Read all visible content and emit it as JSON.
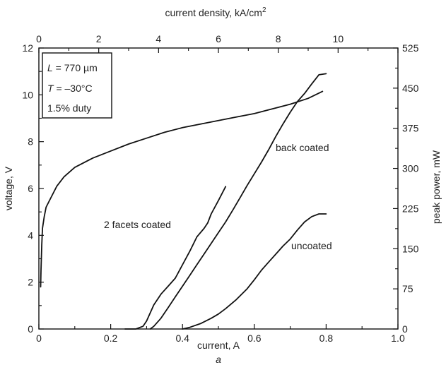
{
  "chart_data": {
    "type": "line",
    "panel_label": "a",
    "axes": {
      "x_bottom": {
        "label": "current, A",
        "range": [
          0,
          1.0
        ],
        "ticks": [
          "0",
          "0.2",
          "0.4",
          "0.6",
          "0.8",
          "1.0"
        ],
        "tick_values": [
          0,
          0.2,
          0.4,
          0.6,
          0.8,
          1.0
        ]
      },
      "x_top": {
        "label": "current density, kA/cm",
        "label_sup": "2",
        "range": [
          0,
          12
        ],
        "ticks": [
          "0",
          "2",
          "4",
          "6",
          "8",
          "10"
        ],
        "tick_values": [
          0,
          2,
          4,
          6,
          8,
          10
        ]
      },
      "y_left": {
        "label": "voltage, V",
        "range": [
          0,
          12
        ],
        "ticks": [
          "0",
          "2",
          "4",
          "6",
          "8",
          "10",
          "12"
        ],
        "tick_values": [
          0,
          2,
          4,
          6,
          8,
          10,
          12
        ]
      },
      "y_right": {
        "label": "peak power, mW",
        "range": [
          0,
          525
        ],
        "ticks": [
          "0",
          "75",
          "150",
          "225",
          "300",
          "375",
          "450",
          "525"
        ],
        "tick_values": [
          0,
          75,
          150,
          225,
          300,
          375,
          450,
          525
        ]
      }
    },
    "legend_box": {
      "line1_var": "L",
      "line1_rest": " = 770 µm",
      "line2_var": "T",
      "line2_rest": " = –30°C",
      "line3": "1.5% duty"
    },
    "series": [
      {
        "kind": "voltage",
        "axis": "left",
        "x": [
          0.005,
          0.006,
          0.008,
          0.01,
          0.015,
          0.02,
          0.03,
          0.04,
          0.05,
          0.07,
          0.1,
          0.15,
          0.2,
          0.25,
          0.3,
          0.35,
          0.4,
          0.45,
          0.5,
          0.55,
          0.6,
          0.65,
          0.7,
          0.75,
          0.79
        ],
        "y": [
          1.8,
          2.5,
          3.6,
          4.3,
          4.8,
          5.2,
          5.5,
          5.8,
          6.1,
          6.5,
          6.9,
          7.3,
          7.6,
          7.9,
          8.15,
          8.4,
          8.6,
          8.75,
          8.9,
          9.05,
          9.2,
          9.4,
          9.6,
          9.85,
          10.15
        ]
      },
      {
        "name": "back coated",
        "axis": "right",
        "x": [
          0.31,
          0.32,
          0.34,
          0.36,
          0.38,
          0.4,
          0.42,
          0.44,
          0.46,
          0.48,
          0.5,
          0.52,
          0.54,
          0.56,
          0.58,
          0.6,
          0.62,
          0.64,
          0.66,
          0.68,
          0.7,
          0.72,
          0.74,
          0.76,
          0.78,
          0.8
        ],
        "y": [
          0,
          5,
          20,
          40,
          60,
          80,
          100,
          120,
          140,
          160,
          180,
          200,
          222,
          245,
          268,
          290,
          312,
          335,
          360,
          383,
          405,
          425,
          440,
          458,
          475,
          477
        ]
      },
      {
        "name": "2 facets coated",
        "axis": "right",
        "x": [
          0.24,
          0.27,
          0.29,
          0.3,
          0.31,
          0.32,
          0.34,
          0.36,
          0.38,
          0.4,
          0.42,
          0.44,
          0.46,
          0.47,
          0.48,
          0.5,
          0.52
        ],
        "y": [
          0,
          0,
          5,
          15,
          30,
          45,
          65,
          80,
          95,
          120,
          145,
          172,
          188,
          198,
          215,
          240,
          266
        ]
      },
      {
        "name": "uncoated",
        "axis": "right",
        "x": [
          0.4,
          0.42,
          0.45,
          0.48,
          0.5,
          0.52,
          0.55,
          0.58,
          0.6,
          0.62,
          0.64,
          0.66,
          0.68,
          0.7,
          0.72,
          0.74,
          0.76,
          0.78,
          0.8
        ],
        "y": [
          0,
          3,
          10,
          20,
          28,
          38,
          55,
          75,
          92,
          110,
          125,
          140,
          155,
          168,
          185,
          200,
          210,
          215,
          215
        ]
      }
    ]
  }
}
